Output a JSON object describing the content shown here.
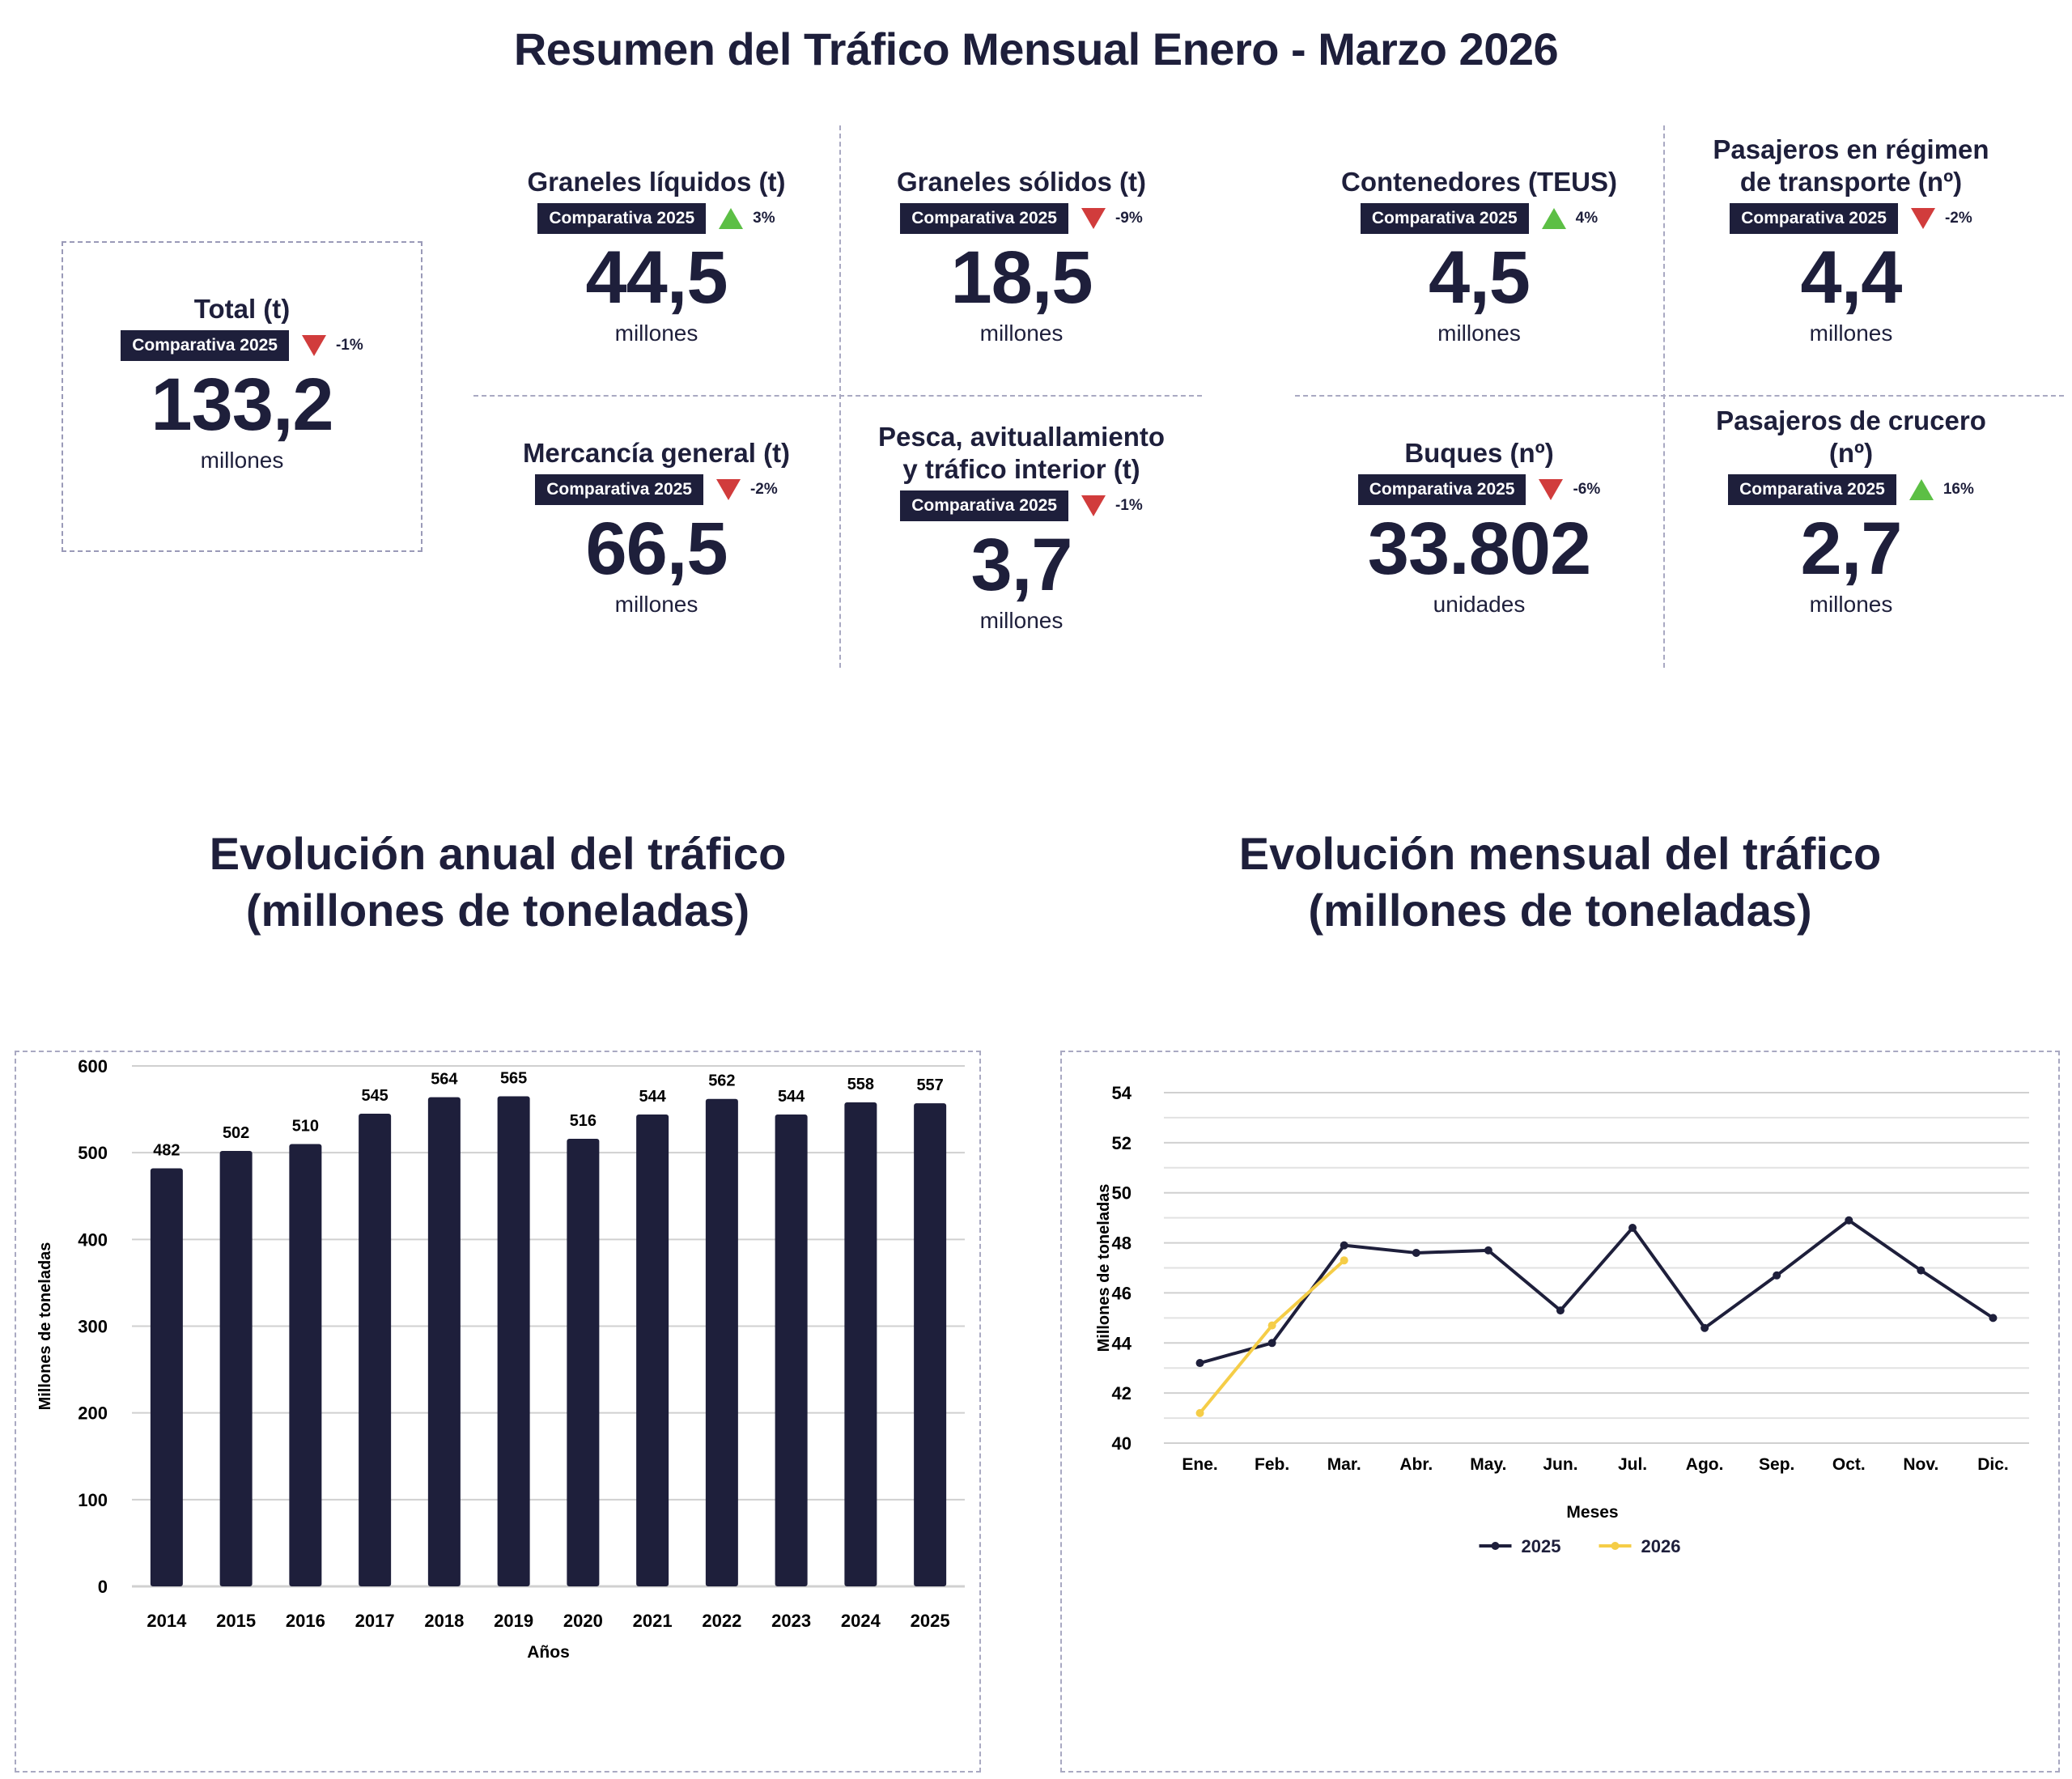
{
  "header": {
    "title": "Resumen del Tráfico Mensual Enero - Marzo 2026"
  },
  "colors": {
    "navy": "#1e1f3b",
    "down": "#d13c3c",
    "up": "#5cbf45",
    "series_2026": "#f5cd47",
    "grid": "#d0d0d0"
  },
  "total": {
    "label": "Total (t)",
    "badge": "Comparativa 2025",
    "trend": "down",
    "pct": "-1%",
    "value": "133,2",
    "unit": "millones"
  },
  "kpis": [
    {
      "label": "Graneles líquidos (t)",
      "badge": "Comparativa 2025",
      "trend": "up",
      "pct": "3%",
      "value": "44,5",
      "unit": "millones"
    },
    {
      "label": "Graneles sólidos (t)",
      "badge": "Comparativa 2025",
      "trend": "down",
      "pct": "-9%",
      "value": "18,5",
      "unit": "millones"
    },
    {
      "label": "Mercancía general (t)",
      "badge": "Comparativa 2025",
      "trend": "down",
      "pct": "-2%",
      "value": "66,5",
      "unit": "millones"
    },
    {
      "label": "Pesca, avituallamiento\ny tráfico interior (t)",
      "badge": "Comparativa 2025",
      "trend": "down",
      "pct": "-1%",
      "value": "3,7",
      "unit": "millones"
    },
    {
      "label": "Contenedores (TEUS)",
      "badge": "Comparativa 2025",
      "trend": "up",
      "pct": "4%",
      "value": "4,5",
      "unit": "millones"
    },
    {
      "label": "Pasajeros en régimen\nde transporte (nº)",
      "badge": "Comparativa 2025",
      "trend": "down",
      "pct": "-2%",
      "value": "4,4",
      "unit": "millones"
    },
    {
      "label": "Buques (nº)",
      "badge": "Comparativa 2025",
      "trend": "down",
      "pct": "-6%",
      "value": "33.802",
      "unit": "unidades"
    },
    {
      "label": "Pasajeros de crucero\n(nº)",
      "badge": "Comparativa 2025",
      "trend": "up",
      "pct": "16%",
      "value": "2,7",
      "unit": "millones"
    }
  ],
  "chart_titles": {
    "annual": "Evolución anual del tráfico\n(millones de toneladas)",
    "monthly": "Evolución mensual del tráfico\n(millones de toneladas)"
  },
  "chart_data": [
    {
      "type": "bar",
      "title": "Evolución anual del tráfico (millones de toneladas)",
      "categories": [
        "2014",
        "2015",
        "2016",
        "2017",
        "2018",
        "2019",
        "2020",
        "2021",
        "2022",
        "2023",
        "2024",
        "2025"
      ],
      "values": [
        482,
        502,
        510,
        545,
        564,
        565,
        516,
        544,
        562,
        544,
        558,
        557
      ],
      "xlabel": "Años",
      "ylabel": "Millones de toneladas",
      "ylim": [
        0,
        600
      ],
      "yticks": [
        0,
        100,
        200,
        300,
        400,
        500,
        600
      ],
      "grid": true,
      "data_labels": true,
      "legend": "none"
    },
    {
      "type": "line",
      "title": "Evolución mensual del tráfico (millones de toneladas)",
      "categories": [
        "Ene.",
        "Feb.",
        "Mar.",
        "Abr.",
        "May.",
        "Jun.",
        "Jul.",
        "Ago.",
        "Sep.",
        "Oct.",
        "Nov.",
        "Dic."
      ],
      "series": [
        {
          "name": "2025",
          "color": "#1e1f3b",
          "values": [
            43.2,
            44.0,
            47.9,
            47.6,
            47.7,
            45.3,
            48.6,
            44.6,
            46.7,
            48.9,
            46.9,
            45.0
          ]
        },
        {
          "name": "2026",
          "color": "#f5cd47",
          "values": [
            41.2,
            44.7,
            47.3
          ]
        }
      ],
      "xlabel": "Meses",
      "ylabel": "Millones de toneladas",
      "ylim": [
        40,
        54
      ],
      "yticks": [
        40,
        42,
        44,
        46,
        48,
        50,
        52,
        54
      ],
      "grid": true,
      "legend": "bottom-center"
    }
  ]
}
